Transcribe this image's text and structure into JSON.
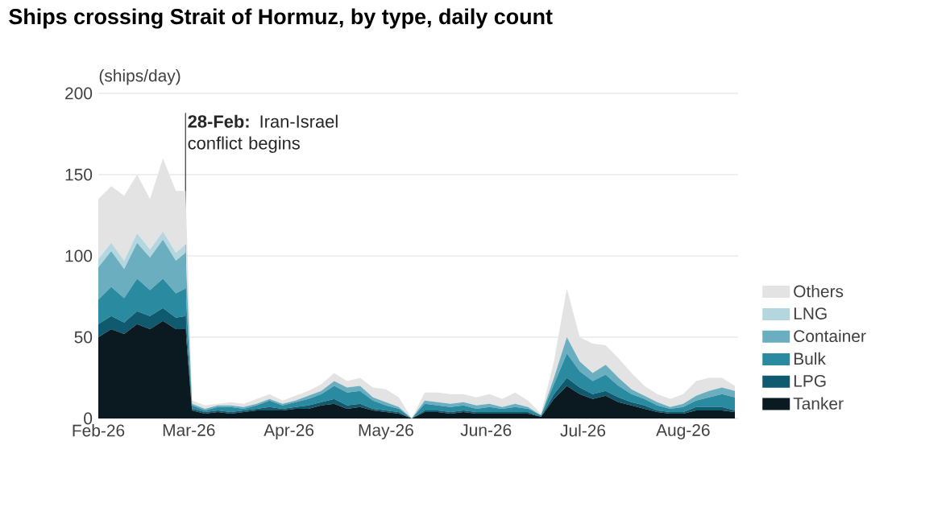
{
  "chart_data": {
    "type": "area",
    "title": "Ships crossing Strait of Hormuz, by type, daily count",
    "ylabel": "(ships/day)",
    "stacked": true,
    "grid": "y",
    "legend": "right",
    "xlim": [
      "2026-02-01",
      "2026-08-18"
    ],
    "ylim": [
      0,
      200
    ],
    "yticks": [
      0,
      50,
      100,
      150,
      200
    ],
    "xticks": [
      {
        "value": "2026-02-01",
        "label": "Feb-26"
      },
      {
        "value": "2026-03-01",
        "label": "Mar-26"
      },
      {
        "value": "2026-04-01",
        "label": "Apr-26"
      },
      {
        "value": "2026-05-01",
        "label": "May-26"
      },
      {
        "value": "2026-06-01",
        "label": "Jun-26"
      },
      {
        "value": "2026-07-01",
        "label": "Jul-26"
      },
      {
        "value": "2026-08-01",
        "label": "Aug-26"
      }
    ],
    "x": [
      "2026-02-01",
      "2026-02-05",
      "2026-02-09",
      "2026-02-13",
      "2026-02-17",
      "2026-02-21",
      "2026-02-25",
      "2026-02-28",
      "2026-03-02",
      "2026-03-06",
      "2026-03-10",
      "2026-03-14",
      "2026-03-18",
      "2026-03-22",
      "2026-03-26",
      "2026-03-30",
      "2026-04-03",
      "2026-04-07",
      "2026-04-11",
      "2026-04-15",
      "2026-04-19",
      "2026-04-23",
      "2026-04-27",
      "2026-05-01",
      "2026-05-05",
      "2026-05-09",
      "2026-05-13",
      "2026-05-17",
      "2026-05-21",
      "2026-05-25",
      "2026-05-29",
      "2026-06-02",
      "2026-06-06",
      "2026-06-10",
      "2026-06-14",
      "2026-06-18",
      "2026-06-22",
      "2026-06-26",
      "2026-06-30",
      "2026-07-04",
      "2026-07-08",
      "2026-07-12",
      "2026-07-16",
      "2026-07-20",
      "2026-07-24",
      "2026-07-28",
      "2026-08-01",
      "2026-08-05",
      "2026-08-09",
      "2026-08-13",
      "2026-08-17"
    ],
    "series": [
      {
        "name": "Tanker",
        "color": "#0b1a20",
        "values": [
          50,
          55,
          52,
          58,
          55,
          60,
          55,
          55,
          5,
          3,
          4,
          3,
          4,
          5,
          5,
          5,
          6,
          6,
          8,
          9,
          6,
          7,
          5,
          4,
          3,
          0,
          4,
          4,
          3,
          4,
          3,
          3,
          3,
          3,
          3,
          1,
          12,
          20,
          15,
          12,
          14,
          10,
          8,
          6,
          4,
          3,
          3,
          5,
          5,
          5,
          4
        ]
      },
      {
        "name": "LPG",
        "color": "#0f5a6e",
        "values": [
          8,
          8,
          7,
          8,
          8,
          8,
          7,
          8,
          1,
          1,
          1,
          1,
          1,
          1,
          2,
          1,
          1,
          2,
          2,
          3,
          2,
          2,
          1,
          1,
          1,
          0,
          1,
          1,
          1,
          1,
          1,
          1,
          1,
          1,
          1,
          0,
          3,
          5,
          4,
          3,
          3,
          3,
          2,
          2,
          1,
          1,
          1,
          2,
          2,
          2,
          1
        ]
      },
      {
        "name": "Bulk",
        "color": "#2a8aa0",
        "values": [
          15,
          18,
          15,
          20,
          16,
          18,
          15,
          17,
          2,
          1,
          2,
          3,
          1,
          2,
          4,
          2,
          3,
          4,
          5,
          8,
          8,
          8,
          5,
          3,
          2,
          0,
          4,
          3,
          3,
          3,
          2,
          3,
          2,
          3,
          2,
          1,
          6,
          15,
          10,
          8,
          10,
          7,
          5,
          4,
          3,
          2,
          3,
          4,
          6,
          8,
          8
        ]
      },
      {
        "name": "Container",
        "color": "#6aaebf",
        "values": [
          20,
          22,
          18,
          22,
          20,
          24,
          20,
          22,
          1,
          1,
          1,
          1,
          1,
          1,
          1,
          1,
          1,
          2,
          2,
          3,
          3,
          3,
          2,
          2,
          1,
          0,
          2,
          2,
          2,
          2,
          2,
          2,
          1,
          2,
          1,
          0,
          4,
          10,
          6,
          5,
          6,
          5,
          3,
          2,
          2,
          1,
          2,
          3,
          4,
          4,
          4
        ]
      },
      {
        "name": "LNG",
        "color": "#b4d6de",
        "values": [
          5,
          5,
          5,
          6,
          5,
          5,
          5,
          5,
          0,
          0,
          0,
          0,
          0,
          0,
          0,
          0,
          0,
          0,
          0,
          0,
          0,
          0,
          0,
          0,
          0,
          0,
          0,
          0,
          0,
          0,
          0,
          0,
          0,
          0,
          0,
          0,
          0,
          0,
          0,
          0,
          0,
          0,
          0,
          0,
          0,
          0,
          0,
          0,
          0,
          0,
          0
        ]
      },
      {
        "name": "Others",
        "color": "#e3e3e3",
        "values": [
          37,
          35,
          40,
          36,
          31,
          45,
          38,
          33,
          2,
          2,
          1,
          2,
          2,
          3,
          3,
          2,
          3,
          3,
          4,
          5,
          4,
          5,
          6,
          8,
          6,
          0,
          5,
          6,
          6,
          5,
          5,
          6,
          5,
          7,
          4,
          1,
          10,
          30,
          15,
          18,
          12,
          12,
          10,
          6,
          5,
          5,
          6,
          9,
          8,
          6,
          3
        ]
      }
    ],
    "ref_lines": [
      {
        "axis": "x",
        "value": "2026-02-28",
        "label": "**28-Feb:** Iran-Israel conflict begins",
        "color": "#555555"
      }
    ]
  }
}
